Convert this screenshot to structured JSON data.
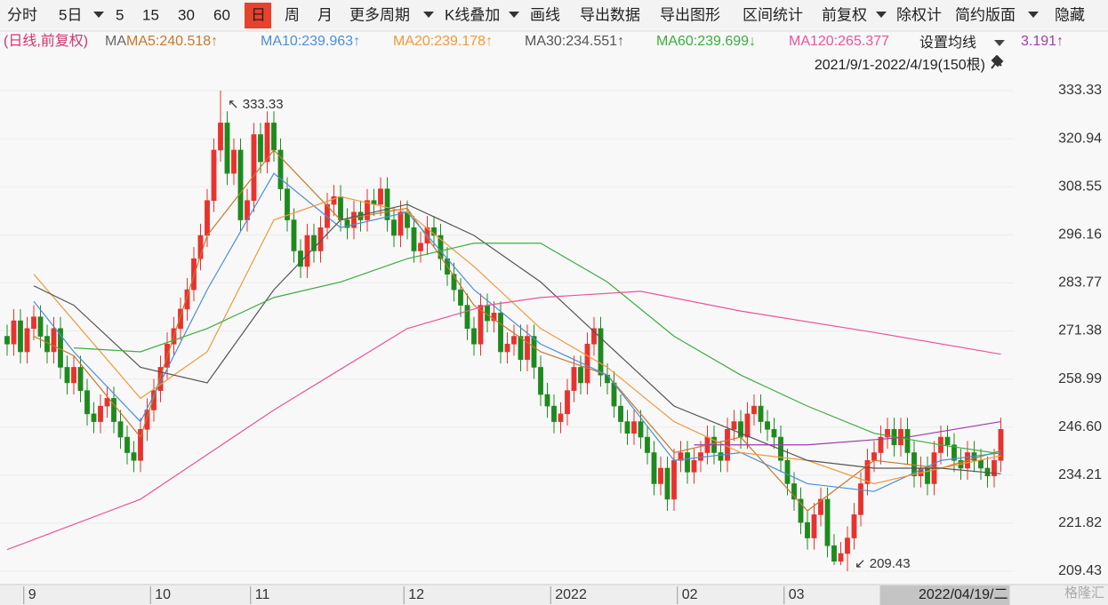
{
  "toolbar": {
    "items": [
      "分时",
      "5日",
      "5",
      "15",
      "30",
      "60",
      "日",
      "周",
      "月",
      "更多周期",
      "K线叠加",
      "画线",
      "导出数据",
      "导出图形",
      "区间统计",
      "前复权",
      "除权计",
      "简约版面",
      "隐藏"
    ],
    "active_index": 6
  },
  "chart_data": {
    "type": "candlestick",
    "legend_prefix": "(日线,前复权)",
    "legend_title": "MA",
    "settings_button": "设置均线",
    "range_label": "2021/9/1-2022/4/19(150根)",
    "up_color": "#e8322e",
    "down_color": "#1e8a1e",
    "open": [
      270,
      268,
      274,
      266,
      272,
      275,
      270,
      266,
      272,
      262,
      258,
      262,
      256,
      250,
      248,
      252,
      254,
      248,
      244,
      240,
      238,
      246,
      251,
      256,
      262,
      268,
      272,
      277,
      282,
      290,
      296,
      305,
      318,
      325,
      312,
      318,
      300,
      305,
      322,
      315,
      325,
      318,
      308,
      300,
      292,
      288,
      296,
      292,
      298,
      304,
      306,
      300,
      298,
      302,
      300,
      305,
      304,
      308,
      300,
      296,
      302,
      298,
      292,
      294,
      298,
      296,
      290,
      286,
      282,
      278,
      272,
      268,
      278,
      274,
      276,
      266,
      268,
      270,
      264,
      270,
      262,
      255,
      252,
      248,
      250,
      256,
      262,
      258,
      268,
      272,
      260,
      258,
      252,
      248,
      245,
      248,
      244,
      240,
      232,
      236,
      228,
      238,
      240,
      235,
      238,
      240,
      244,
      240,
      238,
      246,
      248,
      244,
      250,
      252,
      248,
      246,
      244,
      238,
      232,
      228,
      222,
      218,
      224,
      228,
      216,
      212,
      214,
      218,
      224,
      232,
      238,
      240,
      244,
      246,
      242,
      246,
      240,
      234,
      236,
      232,
      240,
      244,
      242,
      238,
      236,
      240,
      238,
      236,
      234,
      238
    ],
    "close": [
      268,
      274,
      266,
      272,
      275,
      270,
      266,
      272,
      262,
      258,
      262,
      256,
      250,
      248,
      252,
      254,
      248,
      244,
      240,
      238,
      246,
      251,
      256,
      262,
      268,
      272,
      277,
      282,
      290,
      296,
      305,
      318,
      325,
      312,
      318,
      300,
      305,
      322,
      315,
      325,
      318,
      308,
      300,
      292,
      288,
      296,
      292,
      298,
      304,
      306,
      300,
      298,
      302,
      300,
      305,
      304,
      308,
      300,
      296,
      302,
      298,
      292,
      294,
      298,
      296,
      290,
      286,
      282,
      278,
      272,
      268,
      278,
      274,
      276,
      266,
      268,
      270,
      264,
      270,
      262,
      255,
      252,
      248,
      250,
      256,
      262,
      258,
      268,
      272,
      260,
      258,
      252,
      248,
      245,
      248,
      244,
      240,
      232,
      236,
      228,
      238,
      240,
      235,
      238,
      240,
      244,
      240,
      238,
      246,
      248,
      244,
      250,
      252,
      248,
      246,
      244,
      238,
      232,
      228,
      222,
      218,
      224,
      228,
      216,
      212,
      214,
      218,
      224,
      232,
      238,
      240,
      244,
      246,
      242,
      246,
      240,
      234,
      236,
      232,
      240,
      244,
      242,
      238,
      236,
      240,
      238,
      236,
      234,
      238,
      246
    ],
    "high": [
      273,
      277,
      277,
      275,
      278,
      278,
      273,
      275,
      275,
      265,
      265,
      265,
      259,
      253,
      255,
      257,
      257,
      251,
      247,
      243,
      249,
      254,
      259,
      265,
      271,
      275,
      280,
      285,
      293,
      299,
      308,
      321,
      333.33,
      328,
      321,
      321,
      308,
      325,
      325,
      328,
      328,
      321,
      311,
      303,
      295,
      299,
      299,
      301,
      307,
      309,
      309,
      303,
      305,
      305,
      308,
      308,
      311,
      311,
      303,
      305,
      305,
      301,
      297,
      301,
      301,
      299,
      293,
      289,
      285,
      281,
      275,
      281,
      281,
      279,
      279,
      271,
      273,
      273,
      273,
      273,
      265,
      258,
      255,
      253,
      259,
      265,
      265,
      271,
      275,
      275,
      263,
      261,
      255,
      251,
      251,
      251,
      247,
      243,
      239,
      239,
      241,
      243,
      243,
      241,
      243,
      247,
      247,
      243,
      249,
      251,
      251,
      253,
      255,
      255,
      251,
      249,
      247,
      241,
      235,
      231,
      225,
      227,
      231,
      231,
      219,
      217,
      221,
      227,
      235,
      241,
      243,
      247,
      249,
      249,
      249,
      249,
      243,
      239,
      239,
      243,
      247,
      247,
      245,
      241,
      243,
      243,
      241,
      239,
      241,
      249
    ],
    "low": [
      265,
      265,
      263,
      263,
      269,
      267,
      263,
      263,
      259,
      255,
      255,
      253,
      247,
      245,
      245,
      249,
      245,
      241,
      237,
      235,
      235,
      243,
      248,
      253,
      259,
      265,
      269,
      274,
      279,
      287,
      293,
      302,
      315,
      309,
      309,
      297,
      297,
      302,
      312,
      312,
      315,
      305,
      297,
      289,
      285,
      285,
      289,
      289,
      295,
      301,
      297,
      295,
      295,
      297,
      297,
      301,
      301,
      297,
      293,
      293,
      295,
      289,
      289,
      291,
      293,
      287,
      283,
      279,
      275,
      269,
      265,
      265,
      271,
      271,
      263,
      263,
      265,
      261,
      261,
      259,
      252,
      249,
      245,
      245,
      247,
      253,
      255,
      255,
      265,
      257,
      255,
      249,
      245,
      242,
      242,
      241,
      237,
      229,
      229,
      225,
      225,
      235,
      232,
      232,
      235,
      237,
      237,
      235,
      235,
      243,
      241,
      241,
      247,
      245,
      243,
      241,
      235,
      229,
      225,
      219,
      215,
      215,
      221,
      213,
      211,
      211,
      209.43,
      215,
      221,
      229,
      235,
      237,
      241,
      239,
      239,
      237,
      231,
      231,
      229,
      229,
      237,
      239,
      235,
      233,
      233,
      235,
      233,
      231,
      231,
      235
    ],
    "series": [
      {
        "name": "MA5:240.518↑",
        "color": "#c8782c",
        "x": [
          4,
          10,
          20,
          30,
          40,
          50,
          60,
          70,
          80,
          90,
          100,
          110,
          120,
          130,
          140,
          149
        ],
        "values": [
          270,
          265,
          244,
          296,
          318,
          300,
          303,
          278,
          266,
          260,
          240,
          244,
          225,
          238,
          236,
          240.518
        ]
      },
      {
        "name": "MA10:239.963↑",
        "color": "#4a8fd8",
        "x": [
          4,
          10,
          20,
          30,
          40,
          50,
          60,
          70,
          80,
          90,
          100,
          110,
          120,
          130,
          140,
          149
        ],
        "values": [
          279,
          266,
          248,
          282,
          312,
          298,
          302,
          282,
          268,
          260,
          238,
          240,
          232,
          230,
          238,
          239.963
        ]
      },
      {
        "name": "MA20:239.178↑",
        "color": "#f09a3a",
        "x": [
          4,
          10,
          20,
          30,
          40,
          50,
          60,
          70,
          80,
          90,
          100,
          110,
          120,
          130,
          140,
          149
        ],
        "values": [
          286,
          274,
          254,
          266,
          300,
          306,
          302,
          288,
          272,
          262,
          248,
          240,
          238,
          232,
          236,
          239.178
        ]
      },
      {
        "name": "MA30:234.551↑",
        "color": "#555555",
        "x": [
          4,
          10,
          20,
          30,
          40,
          50,
          60,
          70,
          80,
          90,
          100,
          110,
          120,
          130,
          140,
          149
        ],
        "values": [
          283,
          278,
          262,
          258,
          282,
          300,
          304,
          296,
          284,
          268,
          252,
          245,
          238,
          236,
          236,
          234.551
        ]
      },
      {
        "name": "MA60:239.699↓",
        "color": "#3cae3c",
        "x": [
          10,
          20,
          30,
          40,
          50,
          60,
          70,
          80,
          90,
          100,
          110,
          120,
          130,
          140,
          149
        ],
        "values": [
          267,
          266,
          272,
          280,
          284,
          290,
          294,
          294,
          284,
          270,
          260,
          252,
          245,
          242,
          239.699
        ]
      },
      {
        "name": "MA120:265.377",
        "color": "#e8559c",
        "x": [
          0,
          20,
          40,
          60,
          72,
          80,
          95,
          110,
          130,
          149
        ],
        "values": [
          215,
          228,
          251,
          272,
          278,
          280,
          281.6,
          276.5,
          271,
          265.377
        ]
      },
      {
        "name": "3.191↑",
        "color": "#a03ca8",
        "x": [
          103,
          120,
          135,
          149
        ],
        "values": [
          242,
          242,
          244,
          248
        ]
      }
    ],
    "ylim": [
      206.68,
      336.08
    ],
    "yticks": [
      333.33,
      320.94,
      308.55,
      296.16,
      283.77,
      271.38,
      258.99,
      {
        "value": 246.6,
        "label": "246.60"
      },
      234.21,
      221.82,
      209.43
    ],
    "xlim": [
      0,
      149
    ],
    "xticks": [
      {
        "value": 3,
        "label": "9"
      },
      {
        "value": 22,
        "label": "10"
      },
      {
        "value": 37,
        "label": "11"
      },
      {
        "value": 60,
        "label": "12"
      },
      {
        "value": 82,
        "label": "2022"
      },
      {
        "value": 101,
        "label": "02"
      },
      {
        "value": 117,
        "label": "03"
      }
    ],
    "crosshair_label": "2022/04/19/二",
    "annotations": [
      "↖ 333.33",
      "↙ 209.43"
    ],
    "grid": true,
    "watermark": "格隆汇"
  }
}
